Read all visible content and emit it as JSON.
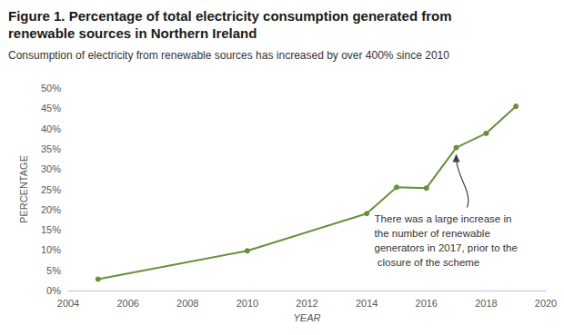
{
  "chart_data": {
    "type": "line",
    "title": "Figure 1. Percentage of total electricity consumption generated from renewable sources in Northern Ireland",
    "subtitle": "Consumption of electricity from renewable sources has increased by over 400% since 2010",
    "x_label": "YEAR",
    "y_label": "PERCENTAGE",
    "x": [
      2005,
      2010,
      2014,
      2015,
      2016,
      2017,
      2018,
      2019
    ],
    "values": [
      2.8,
      9.8,
      19,
      25.5,
      25.3,
      35.3,
      38.8,
      45.5
    ],
    "color": "#6b8e3a",
    "marker": "circle",
    "xlim": [
      2004,
      2020
    ],
    "xticks": [
      2004,
      2006,
      2008,
      2010,
      2012,
      2014,
      2016,
      2018,
      2020
    ],
    "ylim": [
      0,
      50
    ],
    "yticks": [
      {
        "value": 0,
        "label": "0%"
      },
      {
        "value": 5,
        "label": "5%"
      },
      {
        "value": 10,
        "label": "10%"
      },
      {
        "value": 15,
        "label": "15%"
      },
      {
        "value": 20,
        "label": "20%"
      },
      {
        "value": 25,
        "label": "25%"
      },
      {
        "value": 30,
        "label": "30%"
      },
      {
        "value": 35,
        "label": "35%"
      },
      {
        "value": 40,
        "label": "40%"
      },
      {
        "value": 45,
        "label": "45%"
      },
      {
        "value": 50,
        "label": "50%"
      }
    ],
    "grid": false,
    "annotations": [
      {
        "text": "There was a large increase in the number of renewable generators in 2017, prior to the closure of the scheme",
        "x": 2017,
        "y": 35.3
      }
    ]
  }
}
